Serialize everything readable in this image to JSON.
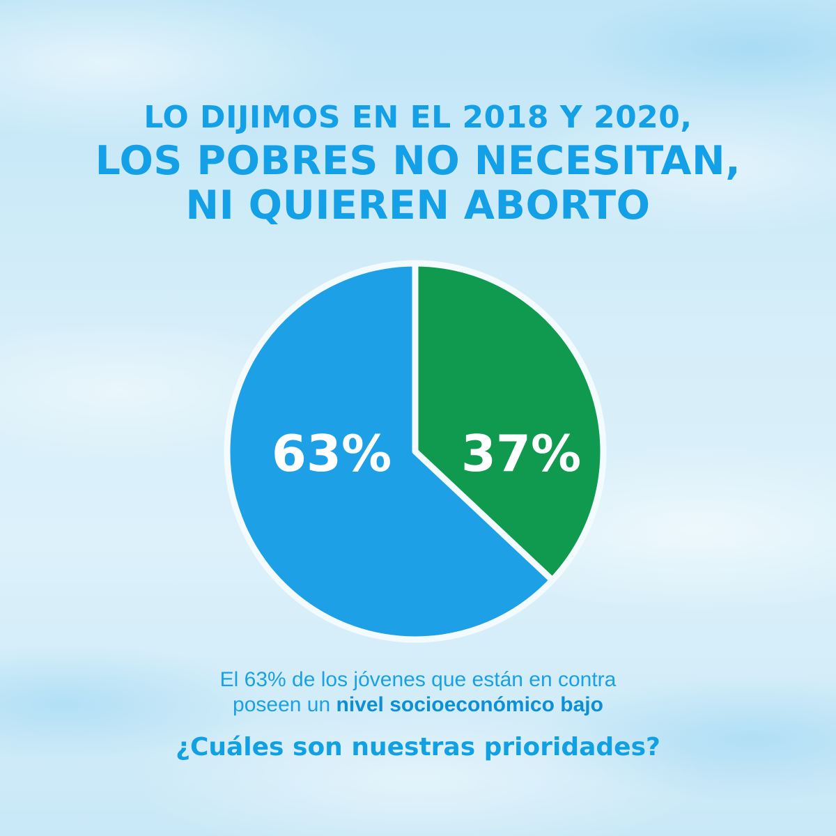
{
  "title": {
    "line1": "LO DIJIMOS EN EL 2018 Y 2020,",
    "line2": "LOS POBRES NO NECESITAN,",
    "line3": "NI QUIEREN ABORTO"
  },
  "chart_data": {
    "type": "pie",
    "slices": [
      {
        "label": "63%",
        "value": 63,
        "color": "#1ea0e6"
      },
      {
        "label": "37%",
        "value": 37,
        "color": "#0f9a4f"
      }
    ]
  },
  "caption": {
    "line1": "El 63% de los jóvenes que están en contra",
    "line2_prefix": "poseen un ",
    "line2_bold": "nivel socioeconómico bajo"
  },
  "question": "¿Cuáles son nuestras prioridades?",
  "colors": {
    "title": "#13a0e6",
    "slice_blue": "#1ea0e6",
    "slice_green": "#0f9a4f",
    "background": "#d6eef9"
  }
}
